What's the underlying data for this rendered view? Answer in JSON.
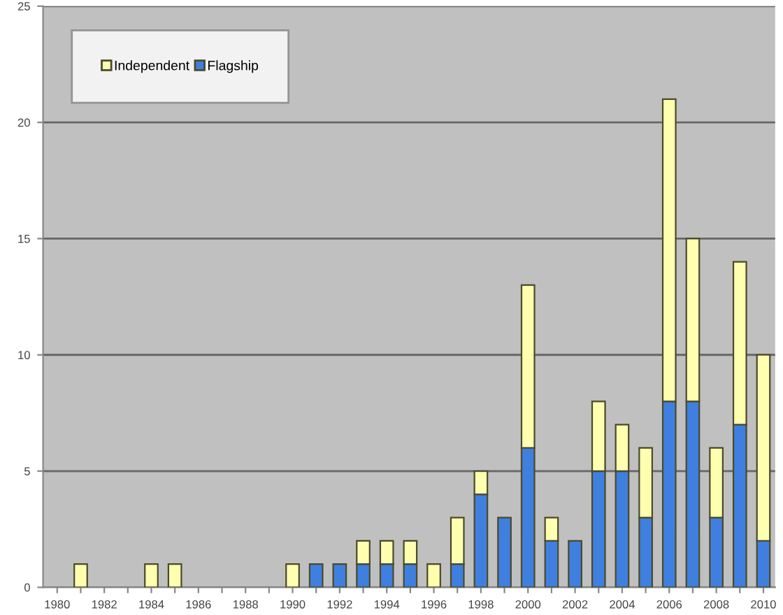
{
  "chart_data": {
    "type": "bar",
    "stacked": true,
    "categories": [
      "1980",
      null,
      "1982",
      null,
      "1984",
      null,
      "1986",
      null,
      "1988",
      null,
      "1990",
      null,
      "1992",
      null,
      "1994",
      null,
      "1996",
      null,
      "1998",
      null,
      "2000",
      null,
      "2002",
      null,
      "2004",
      null,
      "2006",
      null,
      "2008",
      null,
      "2010"
    ],
    "series": [
      {
        "name": "Flagship",
        "color": "#3f7fe0",
        "values": [
          0,
          0,
          0,
          0,
          0,
          0,
          0,
          0,
          0,
          0,
          0,
          1,
          1,
          1,
          1,
          1,
          0,
          1,
          4,
          3,
          6,
          2,
          2,
          5,
          5,
          3,
          8,
          8,
          3,
          7,
          2
        ]
      },
      {
        "name": "Independent",
        "color": "#ffffb0",
        "values": [
          0,
          1,
          0,
          0,
          1,
          1,
          0,
          0,
          0,
          0,
          1,
          0,
          0,
          1,
          1,
          1,
          1,
          2,
          1,
          0,
          7,
          1,
          0,
          3,
          2,
          3,
          13,
          7,
          3,
          7,
          8
        ]
      }
    ],
    "ylim": [
      0,
      25
    ],
    "yticks": [
      0,
      5,
      10,
      15,
      20,
      25
    ],
    "grid": "y",
    "legend": "top left"
  }
}
